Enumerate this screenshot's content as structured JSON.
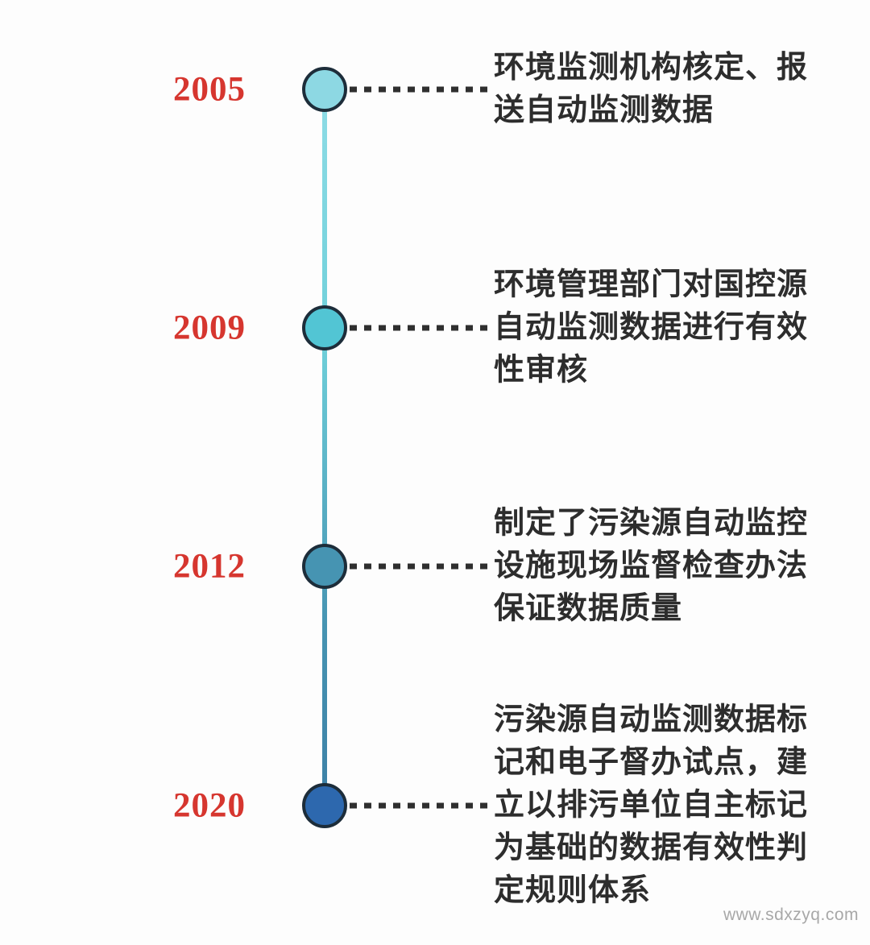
{
  "page": {
    "background": "#fdfdfd"
  },
  "watermark": {
    "text": "www.sdxzyq.com",
    "color": "#a8a8a8"
  },
  "timeline": {
    "year_color": "#d6362f",
    "text_color": "#2d2d2d",
    "dot_border_color": "#1d2d3a",
    "connector_color": "#2f2f2f",
    "line_gradient_top": "#8edce6",
    "line_gradient_bottom": "#3d80a6",
    "events": [
      {
        "year": "2005",
        "dot_color": "#8dd8e3",
        "description_lines": [
          "环境监测机构核定、报",
          "送自动监测数据"
        ]
      },
      {
        "year": "2009",
        "dot_color": "#52c5d4",
        "description_lines": [
          "环境管理部门对国控源",
          "自动监测数据进行有效",
          "性审核"
        ]
      },
      {
        "year": "2012",
        "dot_color": "#4694b2",
        "description_lines": [
          "制定了污染源自动监控",
          "设施现场监督检查办法",
          "保证数据质量"
        ]
      },
      {
        "year": "2020",
        "dot_color": "#2d68ae",
        "description_lines": [
          "污染源自动监测数据标",
          "记和电子督办试点，建",
          "立以排污单位自主标记",
          "为基础的数据有效性判",
          "定规则体系"
        ]
      }
    ]
  }
}
